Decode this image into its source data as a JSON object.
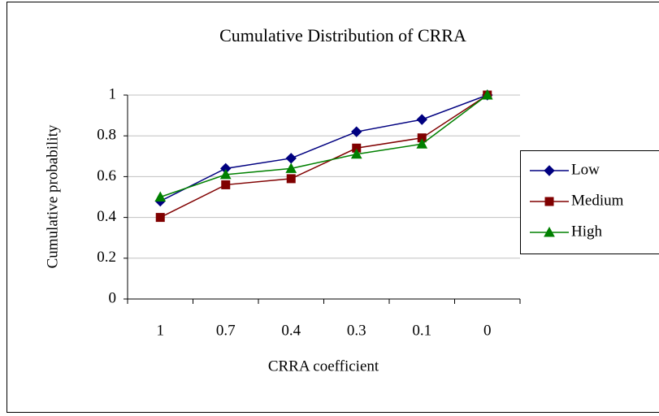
{
  "chart_data": {
    "type": "line",
    "title": "Cumulative Distribution of CRRA",
    "x_label": "CRRA coefficient",
    "y_label": "Cumulative probability",
    "categories": [
      "1",
      "0.7",
      "0.4",
      "0.3",
      "0.1",
      "0"
    ],
    "series": [
      {
        "name": "Low",
        "color": "#000080",
        "marker": "diamond",
        "values": [
          0.48,
          0.64,
          0.69,
          0.82,
          0.88,
          1.0
        ]
      },
      {
        "name": "Medium",
        "color": "#800000",
        "marker": "square",
        "values": [
          0.4,
          0.56,
          0.59,
          0.74,
          0.79,
          1.0
        ]
      },
      {
        "name": "High",
        "color": "#008000",
        "marker": "triangle",
        "values": [
          0.5,
          0.61,
          0.64,
          0.71,
          0.76,
          1.0
        ]
      }
    ],
    "ylim": [
      0,
      1
    ],
    "yticks": [
      0,
      0.2,
      0.4,
      0.6,
      0.8,
      1
    ],
    "grid": true,
    "legend": "right"
  }
}
